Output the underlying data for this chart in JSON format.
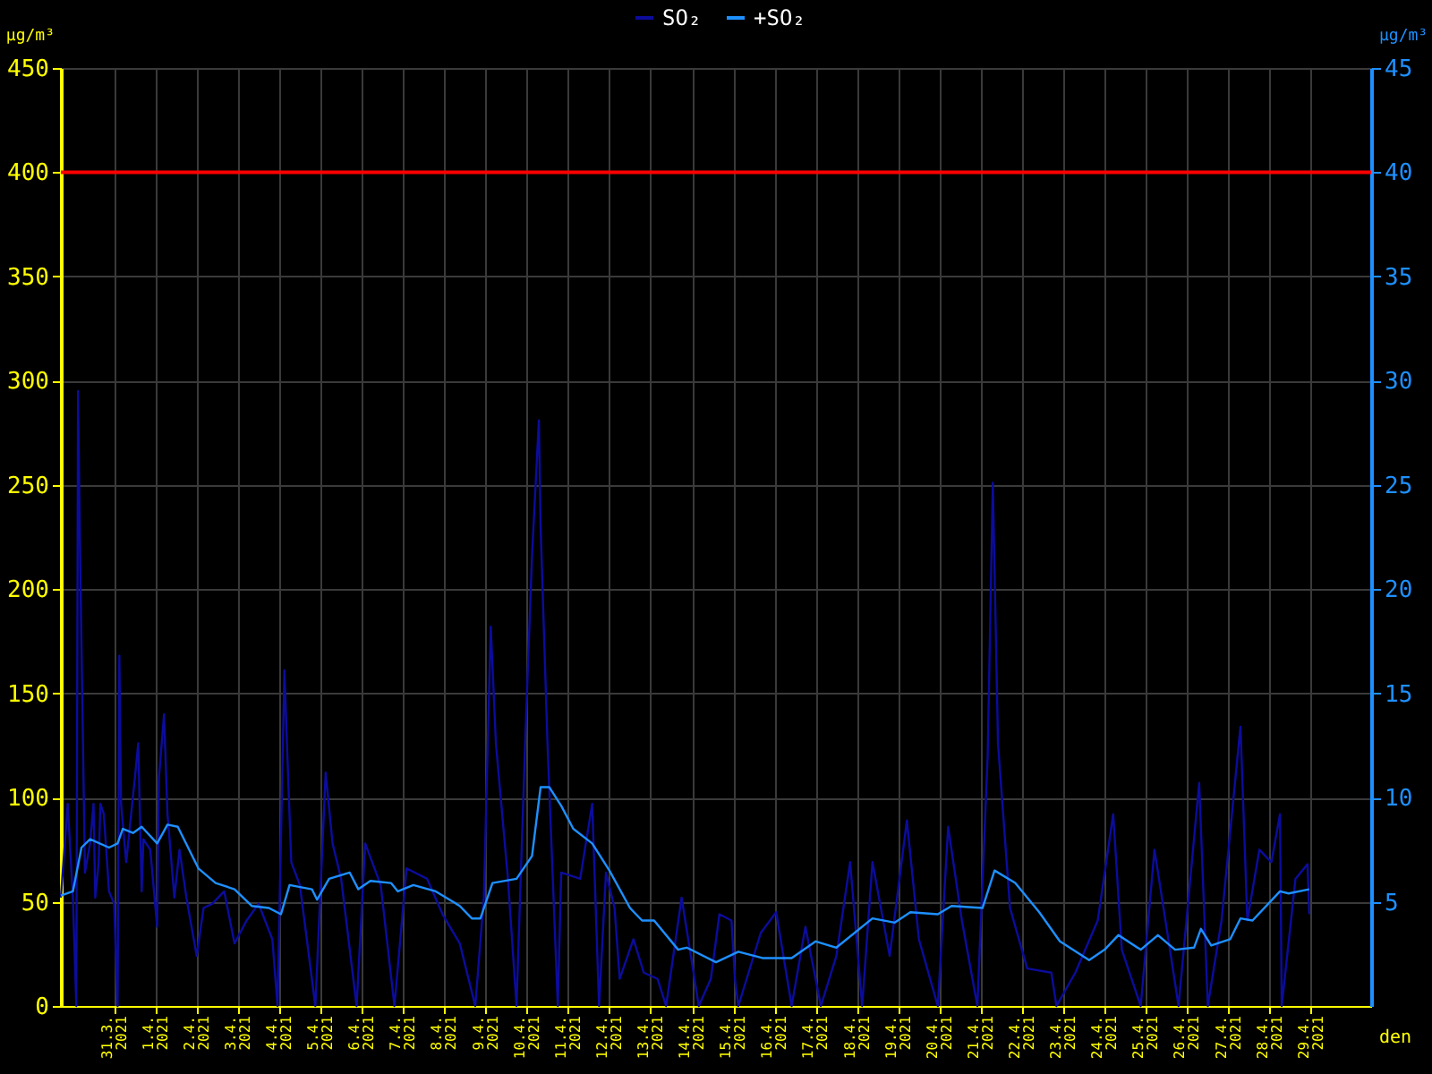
{
  "chart_data": {
    "type": "line",
    "xlabel": "den",
    "ylabel": "μg/m³",
    "y2label": "μg/m³",
    "legend": "top",
    "grid": true,
    "xlim": [
      "2021-03-29T17:00",
      "2021-04-30T11:00"
    ],
    "xticks": [
      {
        "value": "2021-03-31",
        "label": "31.3. 2021"
      },
      {
        "value": "2021-04-01",
        "label": "1.4. 2021"
      },
      {
        "value": "2021-04-02",
        "label": "2.4. 2021"
      },
      {
        "value": "2021-04-03",
        "label": "3.4. 2021"
      },
      {
        "value": "2021-04-04",
        "label": "4.4. 2021"
      },
      {
        "value": "2021-04-05",
        "label": "5.4. 2021"
      },
      {
        "value": "2021-04-06",
        "label": "6.4. 2021"
      },
      {
        "value": "2021-04-07",
        "label": "7.4. 2021"
      },
      {
        "value": "2021-04-08",
        "label": "8.4. 2021"
      },
      {
        "value": "2021-04-09",
        "label": "9.4. 2021"
      },
      {
        "value": "2021-04-10",
        "label": "10.4. 2021"
      },
      {
        "value": "2021-04-11",
        "label": "11.4. 2021"
      },
      {
        "value": "2021-04-12",
        "label": "12.4. 2021"
      },
      {
        "value": "2021-04-13",
        "label": "13.4. 2021"
      },
      {
        "value": "2021-04-14",
        "label": "14.4. 2021"
      },
      {
        "value": "2021-04-15",
        "label": "15.4. 2021"
      },
      {
        "value": "2021-04-16",
        "label": "16.4. 2021"
      },
      {
        "value": "2021-04-17",
        "label": "17.4. 2021"
      },
      {
        "value": "2021-04-18",
        "label": "18.4. 2021"
      },
      {
        "value": "2021-04-19",
        "label": "19.4. 2021"
      },
      {
        "value": "2021-04-20",
        "label": "20.4. 2021"
      },
      {
        "value": "2021-04-21",
        "label": "21.4. 2021"
      },
      {
        "value": "2021-04-22",
        "label": "22.4. 2021"
      },
      {
        "value": "2021-04-23",
        "label": "23.4. 2021"
      },
      {
        "value": "2021-04-24",
        "label": "24.4. 2021"
      },
      {
        "value": "2021-04-25",
        "label": "25.4. 2021"
      },
      {
        "value": "2021-04-26",
        "label": "26.4. 2021"
      },
      {
        "value": "2021-04-27",
        "label": "27.4. 2021"
      },
      {
        "value": "2021-04-28",
        "label": "28.4. 2021"
      },
      {
        "value": "2021-04-29",
        "label": "29.4. 2021"
      }
    ],
    "ylim": [
      0,
      450
    ],
    "yticks": [
      0,
      50,
      100,
      150,
      200,
      250,
      300,
      350,
      400,
      450
    ],
    "y2lim": [
      0,
      45
    ],
    "y2ticks": [
      5,
      10,
      15,
      20,
      25,
      30,
      35,
      40,
      45
    ],
    "ref_lines": [
      {
        "axis": "y",
        "value": 400,
        "color": "#ff0000"
      }
    ],
    "series": [
      {
        "name": "SO₂",
        "color": "#0c0c9c",
        "axis": "y",
        "x": [
          "2021-03-29T17:00",
          "2021-03-29T21:00",
          "2021-03-30T00:00",
          "2021-03-30T02:00",
          "2021-03-30T03:00",
          "2021-03-30T04:00",
          "2021-03-30T07:00",
          "2021-03-30T10:00",
          "2021-03-30T12:00",
          "2021-03-30T13:00",
          "2021-03-30T15:00",
          "2021-03-30T16:00",
          "2021-03-30T18:00",
          "2021-03-30T21:00",
          "2021-03-31T00:00",
          "2021-03-31T02:00",
          "2021-03-31T03:00",
          "2021-03-31T04:00",
          "2021-03-31T07:00",
          "2021-03-31T12:00",
          "2021-03-31T14:00",
          "2021-03-31T16:00",
          "2021-03-31T17:00",
          "2021-03-31T21:00",
          "2021-04-01T01:00",
          "2021-04-01T02:00",
          "2021-04-01T05:00",
          "2021-04-01T07:00",
          "2021-04-01T11:00",
          "2021-04-01T14:00",
          "2021-04-01T18:00",
          "2021-04-02T00:00",
          "2021-04-02T04:00",
          "2021-04-02T09:00",
          "2021-04-02T16:00",
          "2021-04-02T22:00",
          "2021-04-03T05:00",
          "2021-04-03T12:00",
          "2021-04-03T20:00",
          "2021-04-03T23:00",
          "2021-04-04T03:00",
          "2021-04-04T05:00",
          "2021-04-04T07:00",
          "2021-04-04T12:00",
          "2021-04-04T21:00",
          "2021-04-05T03:00",
          "2021-04-05T07:00",
          "2021-04-05T12:00",
          "2021-04-05T21:00",
          "2021-04-06T02:00",
          "2021-04-06T11:00",
          "2021-04-06T19:00",
          "2021-04-07T02:00",
          "2021-04-07T14:00",
          "2021-04-07T23:00",
          "2021-04-08T09:00",
          "2021-04-08T18:00",
          "2021-04-08T23:00",
          "2021-04-09T03:00",
          "2021-04-09T06:00",
          "2021-04-09T13:00",
          "2021-04-09T18:00",
          "2021-04-09T23:00",
          "2021-04-10T03:00",
          "2021-04-10T07:00",
          "2021-04-10T08:00",
          "2021-04-10T12:00",
          "2021-04-10T18:00",
          "2021-04-10T20:00",
          "2021-04-11T07:00",
          "2021-04-11T14:00",
          "2021-04-11T18:00",
          "2021-04-11T22:00",
          "2021-04-12T03:00",
          "2021-04-12T06:00",
          "2021-04-12T14:00",
          "2021-04-12T20:00",
          "2021-04-13T04:00",
          "2021-04-13T09:00",
          "2021-04-13T18:00",
          "2021-04-14T04:00",
          "2021-04-14T11:00",
          "2021-04-14T16:00",
          "2021-04-14T23:00",
          "2021-04-15T01:00",
          "2021-04-15T03:00",
          "2021-04-15T16:00",
          "2021-04-16T01:00",
          "2021-04-16T10:00",
          "2021-04-16T18:00",
          "2021-04-17T03:00",
          "2021-04-17T12:00",
          "2021-04-17T20:00",
          "2021-04-18T03:00",
          "2021-04-18T09:00",
          "2021-04-18T19:00",
          "2021-04-19T05:00",
          "2021-04-19T12:00",
          "2021-04-19T23:00",
          "2021-04-20T05:00",
          "2021-04-20T13:00",
          "2021-04-20T22:00",
          "2021-04-21T04:00",
          "2021-04-21T07:00",
          "2021-04-21T10:00",
          "2021-04-21T17:00",
          "2021-04-22T03:00",
          "2021-04-22T17:00",
          "2021-04-22T20:00",
          "2021-04-23T07:00",
          "2021-04-23T20:00",
          "2021-04-24T05:00",
          "2021-04-24T10:00",
          "2021-04-24T21:00",
          "2021-04-25T05:00",
          "2021-04-25T14:00",
          "2021-04-25T19:00",
          "2021-04-26T07:00",
          "2021-04-26T12:00",
          "2021-04-26T20:00",
          "2021-04-27T07:00",
          "2021-04-27T11:00",
          "2021-04-27T18:00",
          "2021-04-28T01:00",
          "2021-04-28T06:00",
          "2021-04-28T07:00",
          "2021-04-28T15:00",
          "2021-04-28T22:00",
          "2021-04-28T23:00"
        ],
        "values": [
          52,
          97,
          52,
          0,
          295,
          227,
          64,
          78,
          97,
          52,
          69,
          97,
          92,
          55,
          49,
          0,
          168,
          97,
          69,
          109,
          126,
          55,
          80,
          75,
          38,
          109,
          140,
          92,
          52,
          75,
          52,
          24,
          47,
          49,
          55,
          30,
          41,
          49,
          32,
          0,
          161,
          114,
          69,
          58,
          0,
          112,
          78,
          61,
          0,
          78,
          58,
          0,
          66,
          61,
          44,
          30,
          0,
          52,
          182,
          126,
          61,
          0,
          126,
          216,
          281,
          230,
          126,
          0,
          64,
          61,
          97,
          0,
          64,
          47,
          13,
          32,
          16,
          13,
          0,
          52,
          0,
          13,
          44,
          41,
          13,
          0,
          35,
          45,
          0,
          38,
          0,
          24,
          69,
          0,
          69,
          24,
          89,
          32,
          0,
          86,
          41,
          0,
          120,
          251,
          126,
          47,
          18,
          16,
          0,
          16,
          41,
          92,
          27,
          0,
          75,
          27,
          0,
          107,
          0,
          41,
          134,
          41,
          75,
          69,
          92,
          0,
          61,
          68,
          44
        ]
      },
      {
        "name": "+SO₂",
        "color": "#1e90ff",
        "axis": "y2",
        "x": [
          "2021-03-29T17:00",
          "2021-03-30T00:00",
          "2021-03-30T05:00",
          "2021-03-30T10:00",
          "2021-03-30T21:00",
          "2021-03-31T02:00",
          "2021-03-31T05:00",
          "2021-03-31T11:00",
          "2021-03-31T16:00",
          "2021-04-01T01:00",
          "2021-04-01T07:00",
          "2021-04-01T13:00",
          "2021-04-02T01:00",
          "2021-04-02T11:00",
          "2021-04-02T22:00",
          "2021-04-03T08:00",
          "2021-04-03T18:00",
          "2021-04-04T01:00",
          "2021-04-04T06:00",
          "2021-04-04T19:00",
          "2021-04-04T22:00",
          "2021-04-05T05:00",
          "2021-04-05T17:00",
          "2021-04-05T22:00",
          "2021-04-06T05:00",
          "2021-04-06T17:00",
          "2021-04-06T21:00",
          "2021-04-07T06:00",
          "2021-04-07T19:00",
          "2021-04-08T09:00",
          "2021-04-08T16:00",
          "2021-04-08T21:00",
          "2021-04-09T04:00",
          "2021-04-09T18:00",
          "2021-04-10T03:00",
          "2021-04-10T08:00",
          "2021-04-10T13:00",
          "2021-04-10T20:00",
          "2021-04-11T03:00",
          "2021-04-11T14:00",
          "2021-04-12T00:00",
          "2021-04-12T12:00",
          "2021-04-12T19:00",
          "2021-04-13T02:00",
          "2021-04-13T16:00",
          "2021-04-13T21:00",
          "2021-04-14T14:00",
          "2021-04-15T03:00",
          "2021-04-15T17:00",
          "2021-04-16T10:00",
          "2021-04-17T00:00",
          "2021-04-17T12:00",
          "2021-04-18T09:00",
          "2021-04-18T22:00",
          "2021-04-19T07:00",
          "2021-04-19T23:00",
          "2021-04-20T07:00",
          "2021-04-21T01:00",
          "2021-04-21T08:00",
          "2021-04-21T20:00",
          "2021-04-22T10:00",
          "2021-04-22T22:00",
          "2021-04-23T15:00",
          "2021-04-24T00:00",
          "2021-04-24T08:00",
          "2021-04-24T21:00",
          "2021-04-25T07:00",
          "2021-04-25T17:00",
          "2021-04-26T04:00",
          "2021-04-26T08:00",
          "2021-04-26T14:00",
          "2021-04-27T01:00",
          "2021-04-27T07:00",
          "2021-04-27T14:00",
          "2021-04-28T06:00",
          "2021-04-28T11:00",
          "2021-04-28T23:00"
        ],
        "values": [
          5.3,
          5.5,
          7.6,
          8.0,
          7.6,
          7.8,
          8.5,
          8.3,
          8.6,
          7.8,
          8.7,
          8.6,
          6.6,
          5.9,
          5.6,
          4.8,
          4.7,
          4.4,
          5.8,
          5.6,
          5.1,
          6.1,
          6.4,
          5.6,
          6.0,
          5.9,
          5.5,
          5.8,
          5.5,
          4.8,
          4.2,
          4.2,
          5.9,
          6.1,
          7.2,
          10.5,
          10.5,
          9.6,
          8.5,
          7.8,
          6.5,
          4.7,
          4.1,
          4.1,
          2.7,
          2.8,
          2.1,
          2.6,
          2.3,
          2.3,
          3.1,
          2.8,
          4.2,
          4.0,
          4.5,
          4.4,
          4.8,
          4.7,
          6.5,
          5.9,
          4.5,
          3.1,
          2.2,
          2.7,
          3.4,
          2.7,
          3.4,
          2.7,
          2.8,
          3.7,
          2.9,
          3.2,
          4.2,
          4.1,
          5.5,
          5.4,
          5.6
        ]
      }
    ]
  }
}
